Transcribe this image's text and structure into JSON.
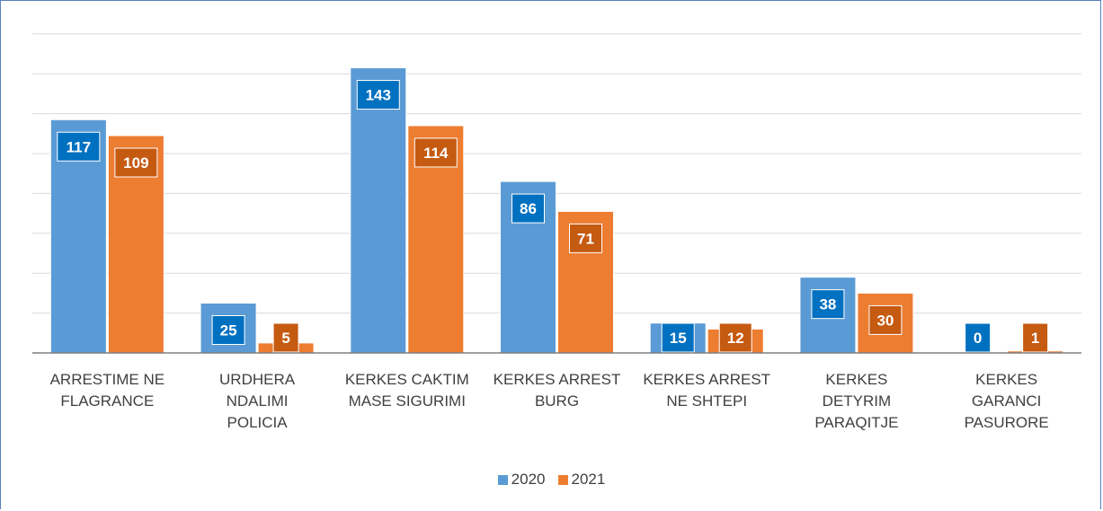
{
  "chart_data": {
    "type": "bar",
    "categories": [
      "ARRESTIME NE\nFLAGRANCE",
      "URDHERA\nNDALIMI\nPOLICIA",
      "KERKES CAKTIM\nMASE SIGURIMI",
      "KERKES ARREST\nBURG",
      "KERKES ARREST\nNE SHTEPI",
      "KERKES\nDETYRIM\nPARAQITJE",
      "KERKES\nGARANCI\nPASURORE"
    ],
    "series": [
      {
        "name": "2020",
        "values": [
          117,
          25,
          143,
          86,
          15,
          38,
          0
        ],
        "color": "#5b9bd5",
        "label_color": "#0070c0"
      },
      {
        "name": "2021",
        "values": [
          109,
          5,
          114,
          71,
          12,
          30,
          1
        ],
        "color": "#ed7d31",
        "label_color": "#c55a11"
      }
    ],
    "ylim": [
      0,
      160
    ],
    "grid": true,
    "legend_position": "bottom",
    "title": "",
    "xlabel": "",
    "ylabel": ""
  }
}
